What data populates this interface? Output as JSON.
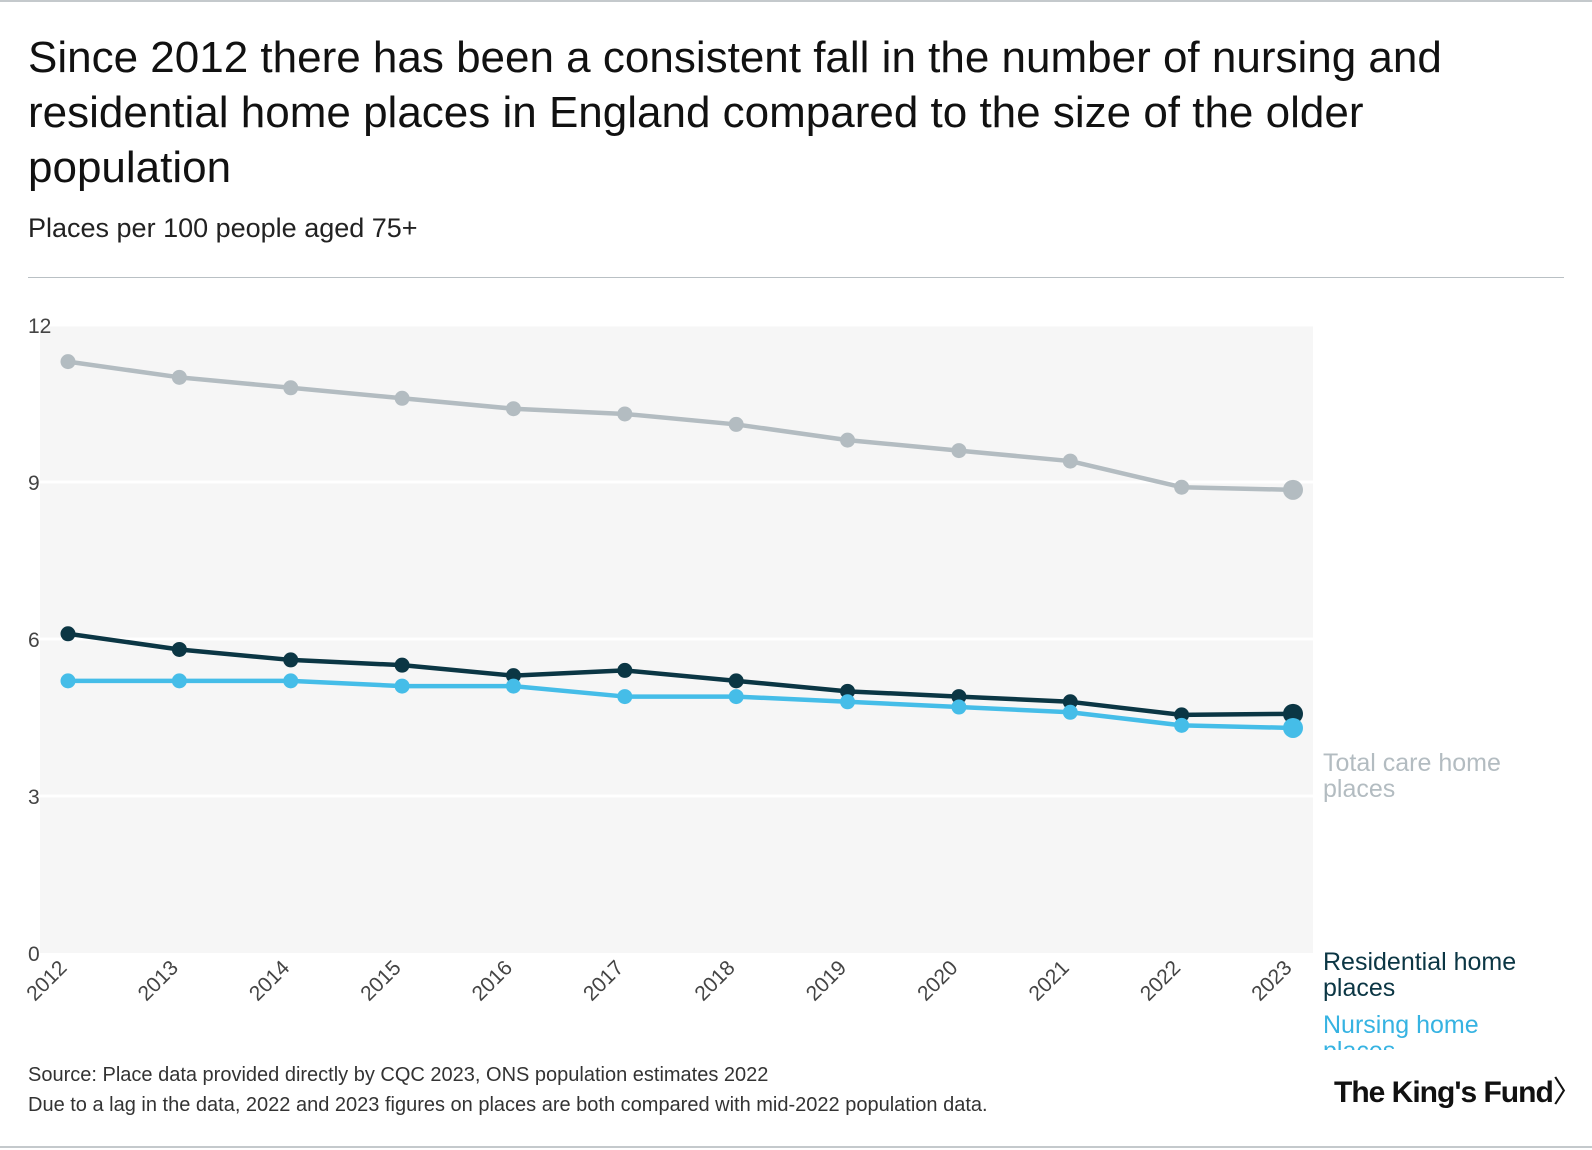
{
  "header": {
    "title": "Since 2012 there has been a consistent fall in the number of nursing and residential home places in England compared to the size of the older population",
    "subtitle": "Places per 100 people aged 75+"
  },
  "footer": {
    "source_line1": "Source: Place data provided directly by CQC 2023, ONS population estimates 2022",
    "source_line2": "Due to a lag in the data, 2022 and 2023 figures on places are both compared with mid-2022 population data.",
    "logo_text": "The King's Fund",
    "logo_chevron": "〉"
  },
  "chart_data": {
    "type": "line",
    "title": "Since 2012 there has been a consistent fall in the number of nursing and residential home places in England compared to the size of the older population",
    "ylabel": "Places per 100 people aged 75+",
    "xlabel": "",
    "ylim": [
      0,
      12
    ],
    "yticks": [
      0,
      3,
      6,
      9,
      12
    ],
    "grid": true,
    "categories": [
      "2012",
      "2013",
      "2014",
      "2015",
      "2016",
      "2017",
      "2018",
      "2019",
      "2020",
      "2021",
      "2022",
      "2023"
    ],
    "series": [
      {
        "name": "Total care home places",
        "label_lines": [
          "Total care home",
          "places"
        ],
        "color": "#b3bcc1",
        "label_color": "#b3bcc1",
        "values": [
          11.3,
          11.0,
          10.8,
          10.6,
          10.4,
          10.3,
          10.1,
          9.8,
          9.6,
          9.4,
          8.9,
          8.85
        ]
      },
      {
        "name": "Residential home places",
        "label_lines": [
          "Residential home",
          "places"
        ],
        "color": "#0b3644",
        "label_color": "#0b3644",
        "values": [
          6.1,
          5.8,
          5.6,
          5.5,
          5.3,
          5.4,
          5.2,
          5.0,
          4.9,
          4.8,
          4.55,
          4.57
        ]
      },
      {
        "name": "Nursing home places",
        "label_lines": [
          "Nursing home",
          "places"
        ],
        "color": "#45bde8",
        "label_color": "#36b3e2",
        "values": [
          5.2,
          5.2,
          5.2,
          5.1,
          5.1,
          4.9,
          4.9,
          4.8,
          4.7,
          4.6,
          4.35,
          4.3
        ]
      }
    ]
  },
  "colors": {
    "plot_background": "#f6f6f6",
    "gridline": "#ffffff",
    "axis_text": "#444444"
  }
}
